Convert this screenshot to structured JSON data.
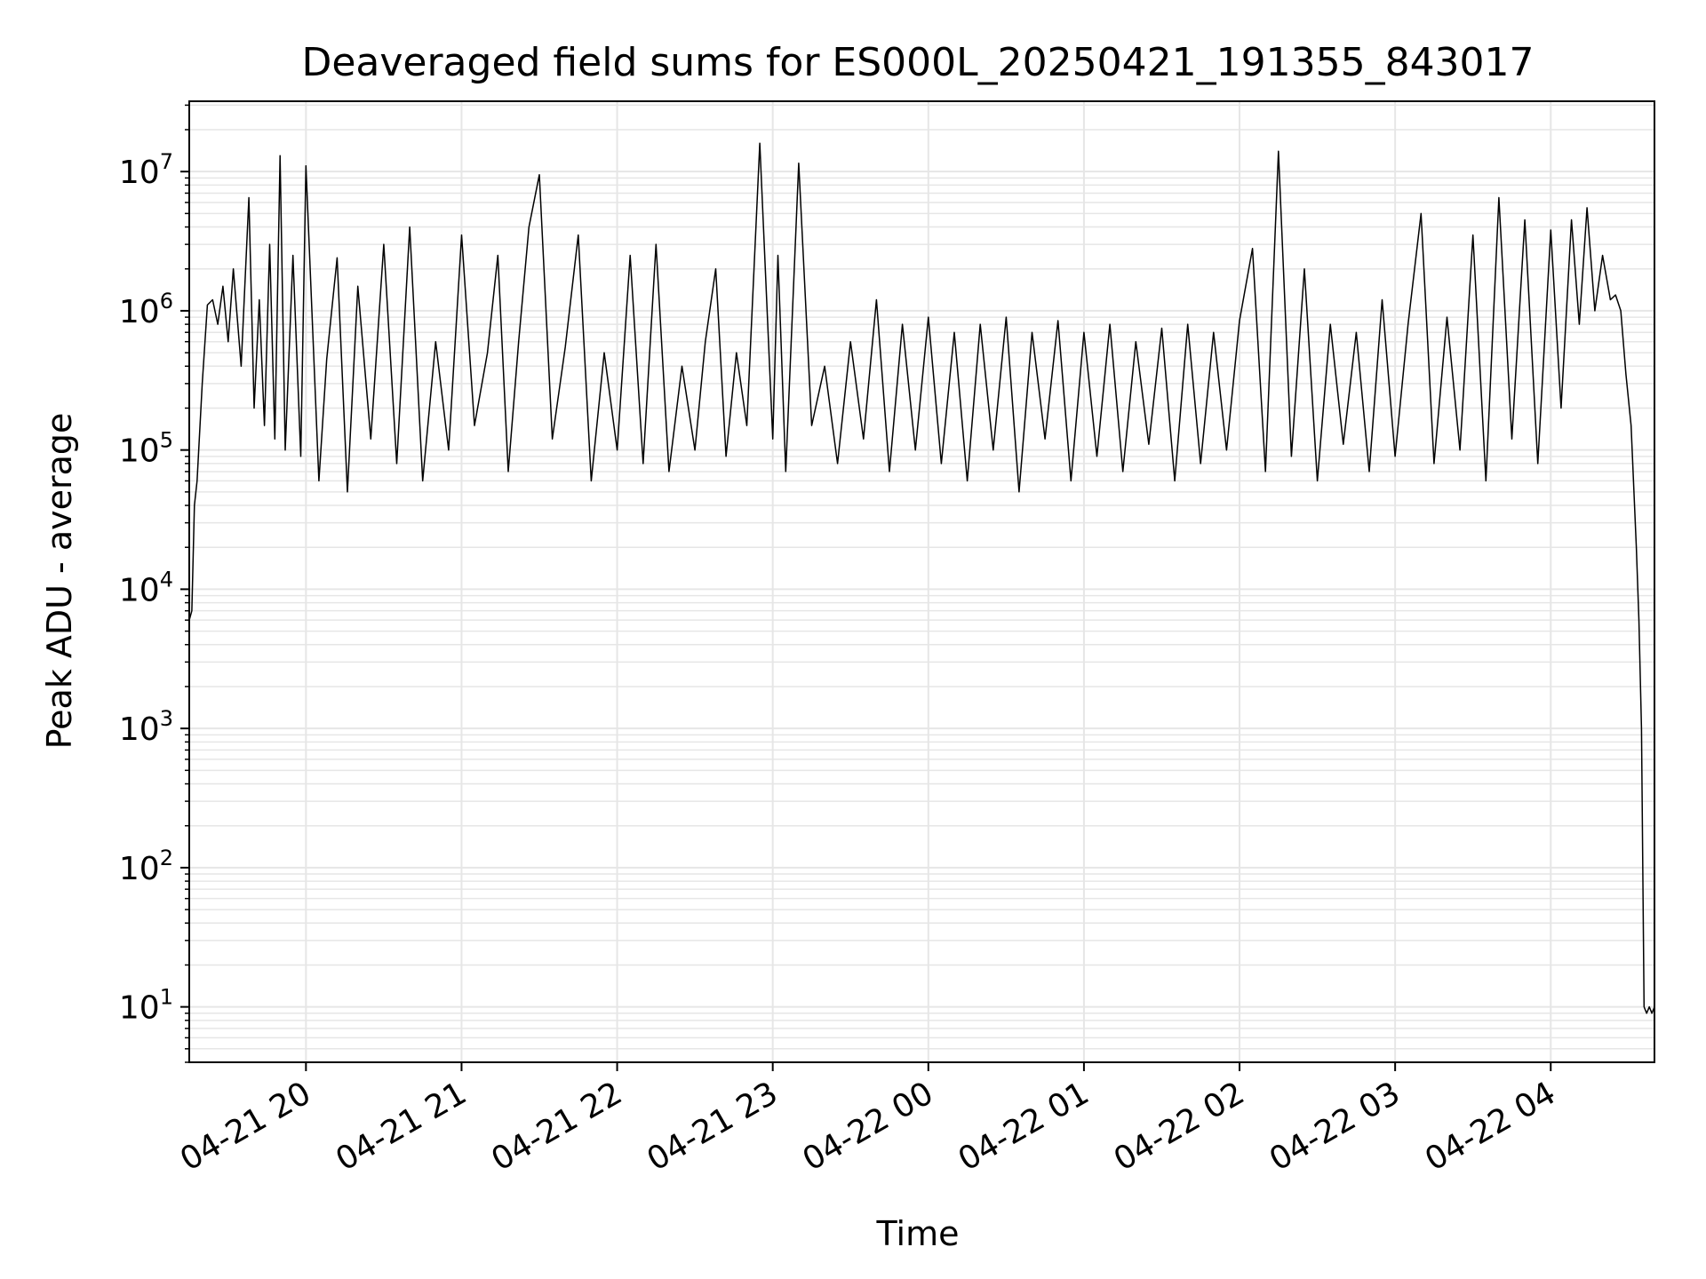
{
  "chart_data": {
    "type": "line",
    "title": "Deaveraged field sums for ES000L_20250421_191355_843017",
    "xlabel": "Time",
    "ylabel": "Peak ADU - average",
    "yscale": "log",
    "ylim": [
      4,
      32000000
    ],
    "xlim": [
      "2025-04-21 19:15",
      "2025-04-22 04:40"
    ],
    "grid": true,
    "line_color": "#000000",
    "grid_color": "#e6e6e6",
    "x_ticks": [
      {
        "value": "2025-04-21 20:00",
        "label": "04-21 20"
      },
      {
        "value": "2025-04-21 21:00",
        "label": "04-21 21"
      },
      {
        "value": "2025-04-21 22:00",
        "label": "04-21 22"
      },
      {
        "value": "2025-04-21 23:00",
        "label": "04-21 23"
      },
      {
        "value": "2025-04-22 00:00",
        "label": "04-22 00"
      },
      {
        "value": "2025-04-22 01:00",
        "label": "04-22 01"
      },
      {
        "value": "2025-04-22 02:00",
        "label": "04-22 02"
      },
      {
        "value": "2025-04-22 03:00",
        "label": "04-22 03"
      },
      {
        "value": "2025-04-22 04:00",
        "label": "04-22 04"
      }
    ],
    "y_ticks": [
      {
        "value": 10,
        "base": "10",
        "exp": "1"
      },
      {
        "value": 100,
        "base": "10",
        "exp": "2"
      },
      {
        "value": 1000,
        "base": "10",
        "exp": "3"
      },
      {
        "value": 10000,
        "base": "10",
        "exp": "4"
      },
      {
        "value": 100000,
        "base": "10",
        "exp": "5"
      },
      {
        "value": 1000000,
        "base": "10",
        "exp": "6"
      },
      {
        "value": 10000000,
        "base": "10",
        "exp": "7"
      }
    ],
    "series": [
      {
        "x": [
          "2025-04-21 19:15",
          "2025-04-21 19:16",
          "2025-04-21 19:17",
          "2025-04-21 19:18",
          "2025-04-21 19:20",
          "2025-04-21 19:22",
          "2025-04-21 19:24",
          "2025-04-21 19:26",
          "2025-04-21 19:28",
          "2025-04-21 19:30",
          "2025-04-21 19:32",
          "2025-04-21 19:35",
          "2025-04-21 19:38",
          "2025-04-21 19:40",
          "2025-04-21 19:42",
          "2025-04-21 19:44",
          "2025-04-21 19:46",
          "2025-04-21 19:48",
          "2025-04-21 19:50",
          "2025-04-21 19:52",
          "2025-04-21 19:55",
          "2025-04-21 19:58",
          "2025-04-21 20:00",
          "2025-04-21 20:05",
          "2025-04-21 20:08",
          "2025-04-21 20:12",
          "2025-04-21 20:16",
          "2025-04-21 20:20",
          "2025-04-21 20:25",
          "2025-04-21 20:30",
          "2025-04-21 20:35",
          "2025-04-21 20:40",
          "2025-04-21 20:45",
          "2025-04-21 20:50",
          "2025-04-21 20:55",
          "2025-04-21 21:00",
          "2025-04-21 21:05",
          "2025-04-21 21:10",
          "2025-04-21 21:14",
          "2025-04-21 21:18",
          "2025-04-21 21:22",
          "2025-04-21 21:26",
          "2025-04-21 21:30",
          "2025-04-21 21:35",
          "2025-04-21 21:40",
          "2025-04-21 21:45",
          "2025-04-21 21:50",
          "2025-04-21 21:55",
          "2025-04-21 22:00",
          "2025-04-21 22:05",
          "2025-04-21 22:10",
          "2025-04-21 22:15",
          "2025-04-21 22:20",
          "2025-04-21 22:25",
          "2025-04-21 22:30",
          "2025-04-21 22:34",
          "2025-04-21 22:38",
          "2025-04-21 22:42",
          "2025-04-21 22:46",
          "2025-04-21 22:50",
          "2025-04-21 22:55",
          "2025-04-21 23:00",
          "2025-04-21 23:02",
          "2025-04-21 23:05",
          "2025-04-21 23:10",
          "2025-04-21 23:15",
          "2025-04-21 23:20",
          "2025-04-21 23:25",
          "2025-04-21 23:30",
          "2025-04-21 23:35",
          "2025-04-21 23:40",
          "2025-04-21 23:45",
          "2025-04-21 23:50",
          "2025-04-21 23:55",
          "2025-04-22 00:00",
          "2025-04-22 00:05",
          "2025-04-22 00:10",
          "2025-04-22 00:15",
          "2025-04-22 00:20",
          "2025-04-22 00:25",
          "2025-04-22 00:30",
          "2025-04-22 00:35",
          "2025-04-22 00:40",
          "2025-04-22 00:45",
          "2025-04-22 00:50",
          "2025-04-22 00:55",
          "2025-04-22 01:00",
          "2025-04-22 01:05",
          "2025-04-22 01:10",
          "2025-04-22 01:15",
          "2025-04-22 01:20",
          "2025-04-22 01:25",
          "2025-04-22 01:30",
          "2025-04-22 01:35",
          "2025-04-22 01:40",
          "2025-04-22 01:45",
          "2025-04-22 01:50",
          "2025-04-22 01:55",
          "2025-04-22 02:00",
          "2025-04-22 02:05",
          "2025-04-22 02:10",
          "2025-04-22 02:15",
          "2025-04-22 02:20",
          "2025-04-22 02:25",
          "2025-04-22 02:30",
          "2025-04-22 02:35",
          "2025-04-22 02:40",
          "2025-04-22 02:45",
          "2025-04-22 02:50",
          "2025-04-22 02:55",
          "2025-04-22 03:00",
          "2025-04-22 03:05",
          "2025-04-22 03:10",
          "2025-04-22 03:15",
          "2025-04-22 03:20",
          "2025-04-22 03:25",
          "2025-04-22 03:30",
          "2025-04-22 03:35",
          "2025-04-22 03:40",
          "2025-04-22 03:45",
          "2025-04-22 03:50",
          "2025-04-22 03:55",
          "2025-04-22 04:00",
          "2025-04-22 04:04",
          "2025-04-22 04:08",
          "2025-04-22 04:11",
          "2025-04-22 04:14",
          "2025-04-22 04:17",
          "2025-04-22 04:20",
          "2025-04-22 04:23",
          "2025-04-22 04:25",
          "2025-04-22 04:27",
          "2025-04-22 04:29",
          "2025-04-22 04:31",
          "2025-04-22 04:33",
          "2025-04-22 04:34",
          "2025-04-22 04:35",
          "2025-04-22 04:36",
          "2025-04-22 04:37",
          "2025-04-22 04:38",
          "2025-04-22 04:39",
          "2025-04-22 04:40"
        ],
        "y": [
          6000,
          7000,
          40000,
          60000,
          300000,
          1100000,
          1200000,
          800000,
          1500000,
          600000,
          2000000,
          400000,
          6500000,
          200000,
          1200000,
          150000,
          3000000,
          120000,
          13000000,
          100000,
          2500000,
          90000,
          11000000,
          60000,
          450000,
          2400000,
          50000,
          1500000,
          120000,
          3000000,
          80000,
          4000000,
          60000,
          600000,
          100000,
          3500000,
          150000,
          500000,
          2500000,
          70000,
          600000,
          4000000,
          9500000,
          120000,
          550000,
          3500000,
          60000,
          500000,
          100000,
          2500000,
          80000,
          3000000,
          70000,
          400000,
          100000,
          600000,
          2000000,
          90000,
          500000,
          150000,
          16000000,
          120000,
          2500000,
          70000,
          11500000,
          150000,
          400000,
          80000,
          600000,
          120000,
          1200000,
          70000,
          800000,
          100000,
          900000,
          80000,
          700000,
          60000,
          800000,
          100000,
          900000,
          50000,
          700000,
          120000,
          850000,
          60000,
          700000,
          90000,
          800000,
          70000,
          600000,
          110000,
          750000,
          60000,
          800000,
          80000,
          700000,
          100000,
          850000,
          2800000,
          70000,
          14000000,
          90000,
          2000000,
          60000,
          800000,
          110000,
          700000,
          70000,
          1200000,
          90000,
          800000,
          5000000,
          80000,
          900000,
          100000,
          3500000,
          60000,
          6500000,
          120000,
          4500000,
          80000,
          3800000,
          200000,
          4500000,
          800000,
          5500000,
          1000000,
          2500000,
          1200000,
          1300000,
          1000000,
          350000,
          150000,
          20000,
          6000,
          1000,
          10,
          9,
          10,
          9,
          10
        ]
      }
    ]
  }
}
